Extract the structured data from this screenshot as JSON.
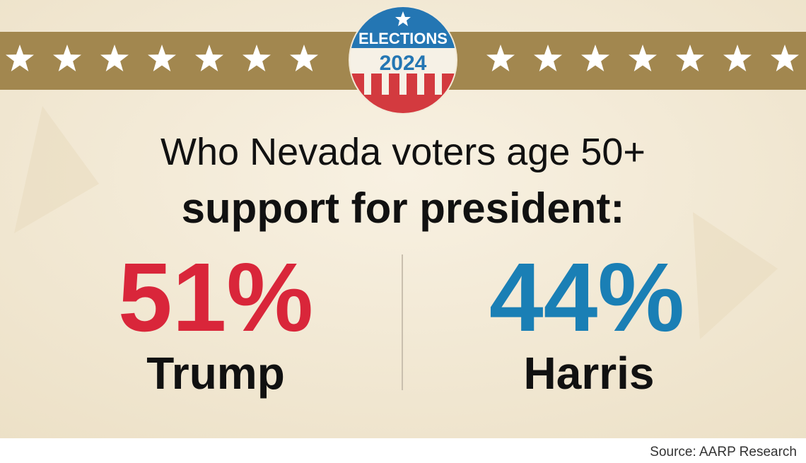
{
  "badge": {
    "title": "ELECTIONS",
    "year": "2024"
  },
  "heading": {
    "line1": "Who Nevada voters age 50+",
    "line2": "support for president:"
  },
  "results": [
    {
      "share": "51%",
      "candidate": "Trump"
    },
    {
      "share": "44%",
      "candidate": "Harris"
    }
  ],
  "source": "Source: AARP Research"
}
